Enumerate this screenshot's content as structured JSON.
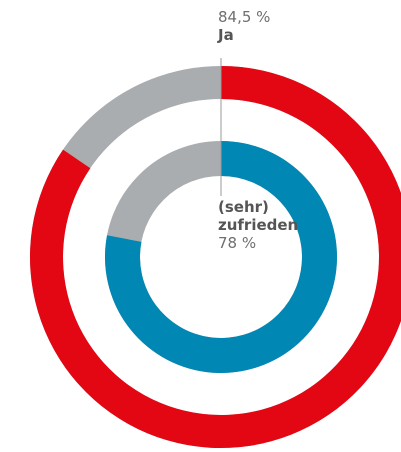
{
  "chart_data": {
    "type": "donut",
    "series": [
      {
        "name": "Ja",
        "color": "#e30613",
        "values": [
          84.5
        ],
        "value_labels": [
          "84,5 %"
        ]
      },
      {
        "name": "(sehr) zufrieden",
        "color": "#0087b4",
        "values": [
          78
        ],
        "value_labels": [
          "78 %"
        ]
      }
    ],
    "rest_color": "#a9adb0"
  }
}
